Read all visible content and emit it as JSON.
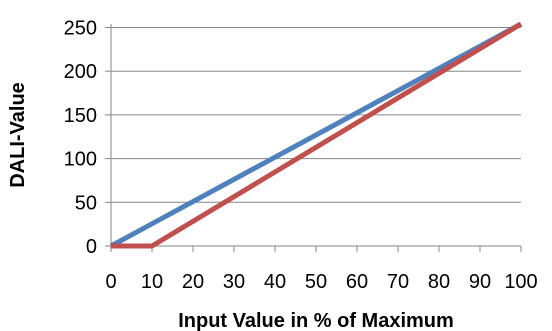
{
  "chart_data": {
    "type": "line",
    "title": "",
    "xlabel": "Input Value in % of Maximum",
    "ylabel": "DALI-Value",
    "xlim": [
      0,
      100
    ],
    "ylim": [
      0,
      254
    ],
    "x_ticks": [
      0,
      10,
      20,
      30,
      40,
      50,
      60,
      70,
      80,
      90,
      100
    ],
    "y_ticks": [
      0,
      50,
      100,
      150,
      200,
      250
    ],
    "grid": "horizontal",
    "legend": "none",
    "series": [
      {
        "color": "#4f81bd",
        "x": [
          0,
          100
        ],
        "y": [
          0,
          254
        ]
      },
      {
        "color": "#c0504d",
        "x": [
          0,
          10,
          100
        ],
        "y": [
          0,
          0,
          254
        ]
      }
    ]
  }
}
